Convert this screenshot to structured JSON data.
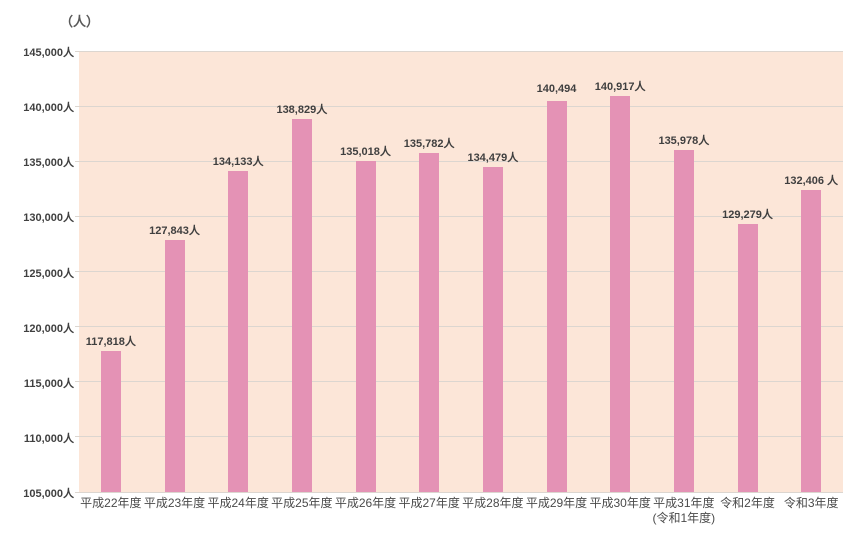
{
  "chart_data": {
    "type": "bar",
    "unit_label": "（人）",
    "categories": [
      [
        "平成22年度"
      ],
      [
        "平成23年度"
      ],
      [
        "平成24年度"
      ],
      [
        "平成25年度"
      ],
      [
        "平成26年度"
      ],
      [
        "平成27年度"
      ],
      [
        "平成28年度"
      ],
      [
        "平成29年度"
      ],
      [
        "平成30年度"
      ],
      [
        "平成31年度",
        "(令和1年度)"
      ],
      [
        "令和2年度"
      ],
      [
        "令和3年度"
      ]
    ],
    "values": [
      117818,
      127843,
      134133,
      138829,
      135018,
      135782,
      134479,
      140494,
      140917,
      135978,
      129279,
      132406
    ],
    "data_labels": [
      "117,818人",
      "127,843人",
      "134,133人",
      "138,829人",
      "135,018人",
      "135,782人",
      "134,479人",
      "140,494",
      "140,917人",
      "135,978人",
      "129,279人",
      "132,406 人"
    ],
    "ylim": [
      105000,
      145000
    ],
    "ytick_step": 5000,
    "ytick_labels": [
      "105,000人",
      "110,000人",
      "115,000人",
      "120,000人",
      "125,000人",
      "130,000人",
      "135,000人",
      "140,000人",
      "145,000人"
    ],
    "grid": "on",
    "legend": "none",
    "colors": {
      "bar": "#e492b5",
      "plot_bg": "#fce6d8",
      "gridline": "#dcd6d0",
      "tick_text": "#404040",
      "unit_text": "#595959"
    }
  }
}
